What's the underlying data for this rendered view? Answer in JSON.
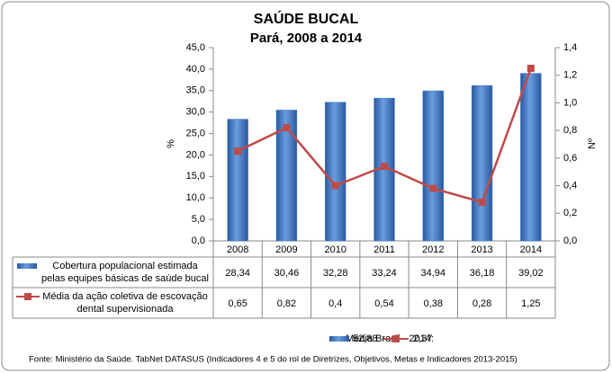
{
  "chart_data": {
    "type": "bar_line",
    "title": "SAÚDE BUCAL",
    "subtitle": "Pará, 2008 a 2014",
    "ylabel": "%",
    "y2label": "Nº",
    "categories": [
      "2008",
      "2009",
      "2010",
      "2011",
      "2012",
      "2013",
      "2014"
    ],
    "series": [
      {
        "name": "Cobertura populacional estimada pelas equipes básicas de saúde bucal",
        "type": "bar",
        "color": "#3d72c0",
        "values": [
          28.34,
          30.46,
          32.28,
          33.24,
          34.94,
          36.18,
          39.02
        ],
        "value_labels": [
          "28,34",
          "30,46",
          "32,28",
          "33,24",
          "34,94",
          "36,18",
          "39,02"
        ]
      },
      {
        "name": "Média da ação coletiva de escovação dental supervisionada",
        "type": "line",
        "axis": "y2",
        "color": "#be4b48",
        "values": [
          0.65,
          0.82,
          0.4,
          0.54,
          0.38,
          0.28,
          1.25
        ],
        "value_labels": [
          "0,65",
          "0,82",
          "0,4",
          "0,54",
          "0,38",
          "0,28",
          "1,25"
        ]
      }
    ],
    "ylim": [
      0,
      45
    ],
    "yticks": [
      {
        "value": 0,
        "label": "0,0"
      },
      {
        "value": 5,
        "label": "5,0"
      },
      {
        "value": 10,
        "label": "10,0"
      },
      {
        "value": 15,
        "label": "15,0"
      },
      {
        "value": 20,
        "label": "20,0"
      },
      {
        "value": 25,
        "label": "25,0"
      },
      {
        "value": 30,
        "label": "30,0"
      },
      {
        "value": 35,
        "label": "35,0"
      },
      {
        "value": 40,
        "label": "40,0"
      },
      {
        "value": 45,
        "label": "45,0"
      }
    ],
    "y2lim": [
      0,
      1.4
    ],
    "y2ticks": [
      {
        "value": 0,
        "label": "0,0"
      },
      {
        "value": 0.2,
        "label": "0,2"
      },
      {
        "value": 0.4,
        "label": "0,4"
      },
      {
        "value": 0.6,
        "label": "0,6"
      },
      {
        "value": 0.8,
        "label": "0,8"
      },
      {
        "value": 1,
        "label": "1,0"
      },
      {
        "value": 1.2,
        "label": "1,2"
      },
      {
        "value": 1.4,
        "label": "1,4"
      }
    ],
    "grid": false,
    "footer": {
      "label": "Média Brasil - 2014:",
      "bar_label": "52,88",
      "line_label": "2,37"
    },
    "source": "Fonte: Ministério da Saúde. TabNet DATASUS (Indicadores 4 e 5 do rol de Diretrizes, Objetivos, Metas e Indicadores 2013-2015)"
  }
}
